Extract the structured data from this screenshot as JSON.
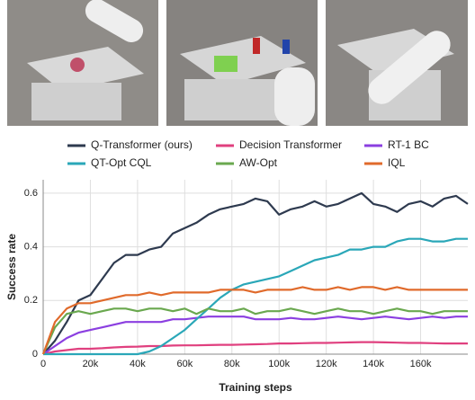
{
  "chart_data": {
    "type": "line",
    "x_label": "Training steps",
    "y_label": "Success rate",
    "x": [
      0,
      5000,
      10000,
      15000,
      20000,
      25000,
      30000,
      35000,
      40000,
      45000,
      50000,
      55000,
      60000,
      65000,
      70000,
      75000,
      80000,
      85000,
      90000,
      95000,
      100000,
      105000,
      110000,
      115000,
      120000,
      125000,
      130000,
      135000,
      140000,
      145000,
      150000,
      155000,
      160000,
      165000,
      170000,
      175000,
      180000
    ],
    "xlim": [
      0,
      180000
    ],
    "xticks": [
      0,
      {
        "value": 20000,
        "label": "20k"
      },
      {
        "value": 40000,
        "label": "40k"
      },
      {
        "value": 60000,
        "label": "60k"
      },
      {
        "value": 80000,
        "label": "80k"
      },
      {
        "value": 100000,
        "label": "100k"
      },
      {
        "value": 120000,
        "label": "120k"
      },
      {
        "value": 140000,
        "label": "140k"
      },
      {
        "value": 160000,
        "label": "160k"
      }
    ],
    "ylim": [
      0,
      0.65
    ],
    "yticks": [
      0,
      0.2,
      0.4,
      0.6
    ],
    "grid": true,
    "series": [
      {
        "name": "Q-Transformer (ours)",
        "color": "#2e3a4f",
        "values": [
          0,
          0.05,
          0.12,
          0.2,
          0.22,
          0.28,
          0.34,
          0.37,
          0.37,
          0.39,
          0.4,
          0.45,
          0.47,
          0.49,
          0.52,
          0.54,
          0.55,
          0.56,
          0.58,
          0.57,
          0.52,
          0.54,
          0.55,
          0.57,
          0.55,
          0.56,
          0.58,
          0.6,
          0.56,
          0.55,
          0.53,
          0.56,
          0.57,
          0.55,
          0.58,
          0.59,
          0.56
        ]
      },
      {
        "name": "Decision Transformer",
        "color": "#e0407f",
        "values": [
          0,
          0.01,
          0.015,
          0.02,
          0.02,
          0.022,
          0.025,
          0.027,
          0.028,
          0.03,
          0.03,
          0.032,
          0.033,
          0.033,
          0.034,
          0.035,
          0.035,
          0.036,
          0.037,
          0.038,
          0.04,
          0.04,
          0.041,
          0.042,
          0.042,
          0.043,
          0.044,
          0.045,
          0.045,
          0.044,
          0.043,
          0.042,
          0.042,
          0.041,
          0.04,
          0.04,
          0.04
        ]
      },
      {
        "name": "RT-1 BC",
        "color": "#8b3fe0",
        "values": [
          0,
          0.03,
          0.06,
          0.08,
          0.09,
          0.1,
          0.11,
          0.12,
          0.12,
          0.12,
          0.12,
          0.13,
          0.13,
          0.135,
          0.14,
          0.14,
          0.14,
          0.14,
          0.13,
          0.13,
          0.13,
          0.135,
          0.13,
          0.13,
          0.135,
          0.14,
          0.135,
          0.13,
          0.135,
          0.14,
          0.135,
          0.13,
          0.135,
          0.14,
          0.135,
          0.14,
          0.14
        ]
      },
      {
        "name": "QT-Opt CQL",
        "color": "#2aa7b8",
        "values": [
          0,
          0,
          0,
          0,
          0,
          0,
          0,
          0,
          0,
          0.01,
          0.03,
          0.06,
          0.09,
          0.13,
          0.17,
          0.21,
          0.24,
          0.26,
          0.27,
          0.28,
          0.29,
          0.31,
          0.33,
          0.35,
          0.36,
          0.37,
          0.39,
          0.39,
          0.4,
          0.4,
          0.42,
          0.43,
          0.43,
          0.42,
          0.42,
          0.43,
          0.43
        ]
      },
      {
        "name": "AW-Opt",
        "color": "#6aa84f",
        "values": [
          0,
          0.1,
          0.15,
          0.16,
          0.15,
          0.16,
          0.17,
          0.17,
          0.16,
          0.17,
          0.17,
          0.16,
          0.17,
          0.15,
          0.17,
          0.16,
          0.16,
          0.17,
          0.15,
          0.16,
          0.16,
          0.17,
          0.16,
          0.15,
          0.16,
          0.17,
          0.16,
          0.16,
          0.15,
          0.16,
          0.17,
          0.16,
          0.16,
          0.15,
          0.16,
          0.16,
          0.16
        ]
      },
      {
        "name": "IQL",
        "color": "#e06a2b",
        "values": [
          0,
          0.12,
          0.17,
          0.19,
          0.19,
          0.2,
          0.21,
          0.22,
          0.22,
          0.23,
          0.22,
          0.23,
          0.23,
          0.23,
          0.23,
          0.24,
          0.24,
          0.24,
          0.23,
          0.24,
          0.24,
          0.24,
          0.25,
          0.24,
          0.24,
          0.25,
          0.24,
          0.25,
          0.25,
          0.24,
          0.25,
          0.24,
          0.24,
          0.24,
          0.24,
          0.24,
          0.24
        ]
      }
    ]
  }
}
